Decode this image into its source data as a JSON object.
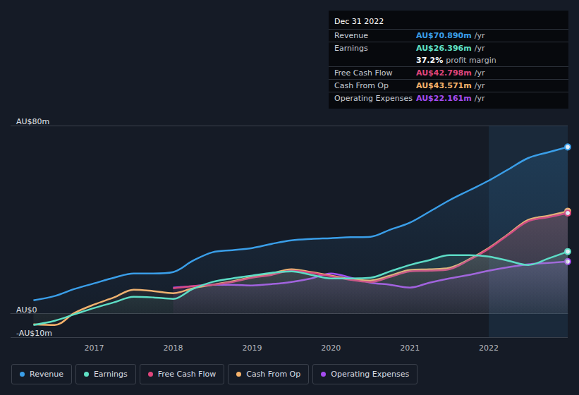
{
  "chart_data": {
    "type": "area",
    "x": [
      2016.23,
      2016.5,
      2016.75,
      2017.0,
      2017.25,
      2017.5,
      2017.75,
      2018.0,
      2018.25,
      2018.5,
      2018.75,
      2019.0,
      2019.25,
      2019.5,
      2019.75,
      2020.0,
      2020.25,
      2020.5,
      2020.75,
      2021.0,
      2021.25,
      2021.5,
      2021.75,
      2022.0,
      2022.25,
      2022.5,
      2022.75,
      2023.0
    ],
    "series": [
      {
        "name": "Revenue",
        "color": "#3a9ee8",
        "values": [
          5.7,
          7.5,
          10.5,
          12.9,
          15.3,
          17.1,
          17.1,
          17.7,
          22.5,
          26.1,
          27.0,
          27.9,
          29.7,
          31.2,
          31.8,
          32.1,
          32.5,
          32.7,
          35.7,
          38.7,
          43.4,
          48.2,
          52.4,
          56.6,
          61.4,
          66.2,
          68.6,
          70.89
        ]
      },
      {
        "name": "Earnings",
        "color": "#5fe0c4",
        "values": [
          -4.8,
          -3.0,
          -0.3,
          2.4,
          4.8,
          7.2,
          6.9,
          6.3,
          10.5,
          13.5,
          15.0,
          16.2,
          17.4,
          18.0,
          16.5,
          15.0,
          15.0,
          15.3,
          18.0,
          20.7,
          22.8,
          24.9,
          24.9,
          24.3,
          22.5,
          20.7,
          23.4,
          26.396
        ]
      },
      {
        "name": "Free Cash Flow",
        "color": "#e0457b",
        "values": [
          null,
          null,
          null,
          null,
          null,
          null,
          null,
          10.8,
          11.7,
          12.3,
          13.5,
          15.3,
          16.5,
          18.3,
          17.4,
          15.9,
          14.4,
          13.5,
          15.6,
          18.0,
          18.3,
          18.9,
          22.8,
          27.6,
          33.6,
          39.3,
          41.0,
          42.798
        ]
      },
      {
        "name": "Cash From Op",
        "color": "#f5b26b",
        "values": [
          -4.5,
          -4.8,
          0.3,
          3.9,
          6.9,
          10.2,
          9.6,
          8.7,
          10.8,
          12.3,
          13.8,
          15.6,
          17.1,
          18.9,
          17.7,
          16.2,
          14.7,
          14.1,
          16.2,
          18.6,
          18.9,
          19.5,
          23.1,
          27.9,
          33.9,
          39.9,
          41.6,
          43.571
        ]
      },
      {
        "name": "Operating Expenses",
        "color": "#a54cf0",
        "values": [
          null,
          null,
          null,
          null,
          null,
          null,
          null,
          11.1,
          11.7,
          12.3,
          12.3,
          12.0,
          12.6,
          13.5,
          15.0,
          17.1,
          15.3,
          13.2,
          12.3,
          11.1,
          13.2,
          15.0,
          16.5,
          18.3,
          19.8,
          21.0,
          21.6,
          22.161
        ]
      }
    ],
    "xlim": [
      2015.94,
      2023.0
    ],
    "xticks": [
      2017,
      2018,
      2019,
      2020,
      2021,
      2022
    ],
    "ylim": [
      -10,
      80
    ],
    "yticks": [
      {
        "value": -10,
        "label": "-AU$10m"
      },
      {
        "value": 0,
        "label": "AU$0"
      },
      {
        "value": 80,
        "label": "AU$80m"
      }
    ],
    "grid": true,
    "legend": "bottom",
    "marker": "last",
    "annotation": {
      "title": "Dec 31 2022",
      "rows": [
        {
          "label": "Revenue",
          "value": "AU$70.890m",
          "unit": "/yr"
        },
        {
          "label": "Earnings",
          "value": "AU$26.396m",
          "unit": "/yr"
        },
        {
          "value": "37.2%",
          "unit": "profit margin"
        },
        {
          "label": "Free Cash Flow",
          "value": "AU$42.798m",
          "unit": "/yr"
        },
        {
          "label": "Cash From Op",
          "value": "AU$43.571m",
          "unit": "/yr"
        },
        {
          "label": "Operating Expenses",
          "value": "AU$22.161m",
          "unit": "/yr"
        }
      ]
    }
  }
}
